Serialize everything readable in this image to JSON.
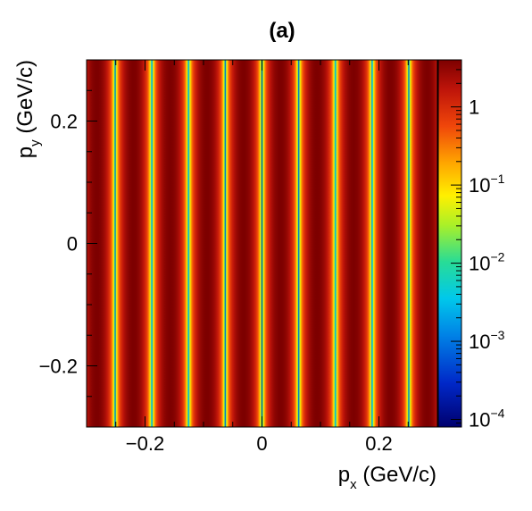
{
  "chart_data": {
    "type": "heatmap",
    "title": "(a)",
    "xlabel": {
      "base": "p",
      "sub": "x",
      "unit": " (GeV/c)"
    },
    "ylabel": {
      "base": "p",
      "sub": "y",
      "unit": " (GeV/c)"
    },
    "xlim": [
      -0.3,
      0.3
    ],
    "ylim": [
      -0.3,
      0.3
    ],
    "x_ticks": [
      {
        "value": -0.2,
        "label": "−0.2"
      },
      {
        "value": 0,
        "label": "0"
      },
      {
        "value": 0.2,
        "label": "0.2"
      }
    ],
    "y_ticks": [
      {
        "value": 0.2,
        "label": "0.2"
      },
      {
        "value": 0,
        "label": "0"
      },
      {
        "value": -0.2,
        "label": "−0.2"
      }
    ],
    "z_scale": "log",
    "zlim": [
      8e-05,
      4
    ],
    "z_ticks": [
      {
        "value": 1,
        "base": "1",
        "exp": ""
      },
      {
        "value": 0.1,
        "base": "10",
        "exp": "−1"
      },
      {
        "value": 0.01,
        "base": "10",
        "exp": "−2"
      },
      {
        "value": 0.001,
        "base": "10",
        "exp": "−3"
      },
      {
        "value": 0.0001,
        "base": "10",
        "exp": "−4"
      }
    ],
    "pattern": "vertical fringes, intensity depends only on p_x",
    "fringe_period": 0.0628,
    "peak_value": 4,
    "minima_x": [
      -0.251,
      -0.188,
      -0.126,
      -0.063,
      0.0,
      0.063,
      0.126,
      0.188,
      0.251
    ],
    "colormap": "rainbow (dark blue → cyan → green → yellow → orange → red → dark red)",
    "grid": false,
    "legend": "colorbar-right"
  }
}
